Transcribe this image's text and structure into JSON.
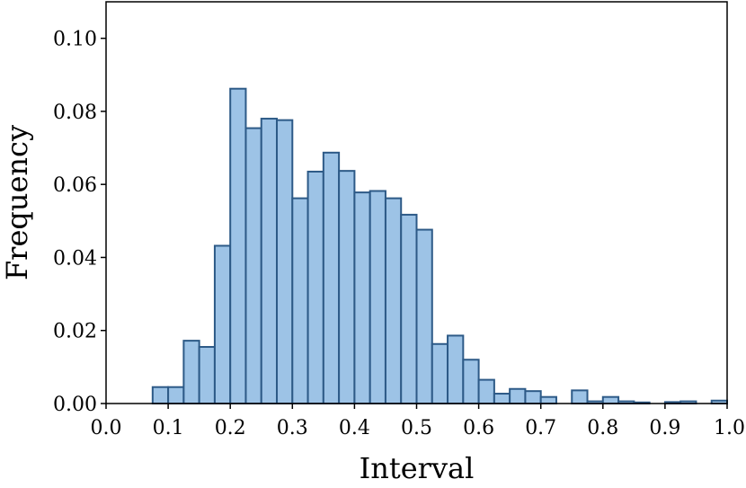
{
  "chart_data": {
    "type": "bar",
    "title": "",
    "xlabel": "Interval",
    "ylabel": "Frequency",
    "xlim": [
      0.0,
      1.0
    ],
    "ylim": [
      0.0,
      0.11
    ],
    "grid": false,
    "legend": "none",
    "bar_color": "#9dc3e6",
    "edge_color": "#2d5a87",
    "x_ticks": [
      {
        "value": 0.0,
        "label": "0.0"
      },
      {
        "value": 0.1,
        "label": "0.1"
      },
      {
        "value": 0.2,
        "label": "0.2"
      },
      {
        "value": 0.3,
        "label": "0.3"
      },
      {
        "value": 0.4,
        "label": "0.4"
      },
      {
        "value": 0.5,
        "label": "0.5"
      },
      {
        "value": 0.6,
        "label": "0.6"
      },
      {
        "value": 0.7,
        "label": "0.7"
      },
      {
        "value": 0.8,
        "label": "0.8"
      },
      {
        "value": 0.9,
        "label": "0.9"
      },
      {
        "value": 1.0,
        "label": "1.0"
      }
    ],
    "y_ticks": [
      {
        "value": 0.0,
        "label": "0.00"
      },
      {
        "value": 0.02,
        "label": "0.02"
      },
      {
        "value": 0.04,
        "label": "0.04"
      },
      {
        "value": 0.06,
        "label": "0.06"
      },
      {
        "value": 0.08,
        "label": "0.08"
      },
      {
        "value": 0.1,
        "label": "0.10"
      }
    ],
    "bins": [
      {
        "start": 0.075,
        "end": 0.1,
        "value": 0.0045
      },
      {
        "start": 0.1,
        "end": 0.125,
        "value": 0.0045
      },
      {
        "start": 0.125,
        "end": 0.15,
        "value": 0.0172
      },
      {
        "start": 0.15,
        "end": 0.175,
        "value": 0.0155
      },
      {
        "start": 0.175,
        "end": 0.2,
        "value": 0.0432
      },
      {
        "start": 0.2,
        "end": 0.225,
        "value": 0.0862
      },
      {
        "start": 0.225,
        "end": 0.25,
        "value": 0.0754
      },
      {
        "start": 0.25,
        "end": 0.275,
        "value": 0.078
      },
      {
        "start": 0.275,
        "end": 0.3,
        "value": 0.0776
      },
      {
        "start": 0.3,
        "end": 0.325,
        "value": 0.0562
      },
      {
        "start": 0.325,
        "end": 0.35,
        "value": 0.0635
      },
      {
        "start": 0.35,
        "end": 0.375,
        "value": 0.0687
      },
      {
        "start": 0.375,
        "end": 0.4,
        "value": 0.0637
      },
      {
        "start": 0.4,
        "end": 0.425,
        "value": 0.0578
      },
      {
        "start": 0.425,
        "end": 0.45,
        "value": 0.0582
      },
      {
        "start": 0.45,
        "end": 0.475,
        "value": 0.0562
      },
      {
        "start": 0.475,
        "end": 0.5,
        "value": 0.0517
      },
      {
        "start": 0.5,
        "end": 0.525,
        "value": 0.0476
      },
      {
        "start": 0.525,
        "end": 0.55,
        "value": 0.0163
      },
      {
        "start": 0.55,
        "end": 0.575,
        "value": 0.0186
      },
      {
        "start": 0.575,
        "end": 0.6,
        "value": 0.012
      },
      {
        "start": 0.6,
        "end": 0.625,
        "value": 0.0065
      },
      {
        "start": 0.625,
        "end": 0.65,
        "value": 0.0027
      },
      {
        "start": 0.65,
        "end": 0.675,
        "value": 0.004
      },
      {
        "start": 0.675,
        "end": 0.7,
        "value": 0.0034
      },
      {
        "start": 0.7,
        "end": 0.725,
        "value": 0.0018
      },
      {
        "start": 0.725,
        "end": 0.75,
        "value": 0.0
      },
      {
        "start": 0.75,
        "end": 0.775,
        "value": 0.0036
      },
      {
        "start": 0.775,
        "end": 0.8,
        "value": 0.0006
      },
      {
        "start": 0.8,
        "end": 0.825,
        "value": 0.0018
      },
      {
        "start": 0.825,
        "end": 0.85,
        "value": 0.0006
      },
      {
        "start": 0.85,
        "end": 0.875,
        "value": 0.0003
      },
      {
        "start": 0.875,
        "end": 0.9,
        "value": 0.0
      },
      {
        "start": 0.9,
        "end": 0.925,
        "value": 0.0004
      },
      {
        "start": 0.925,
        "end": 0.95,
        "value": 0.0006
      },
      {
        "start": 0.95,
        "end": 0.975,
        "value": 0.0
      },
      {
        "start": 0.975,
        "end": 1.0,
        "value": 0.0008
      }
    ]
  }
}
